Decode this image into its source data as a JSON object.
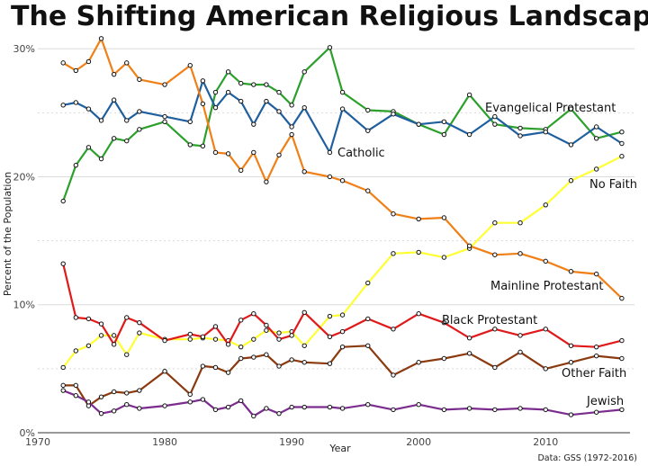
{
  "chart_data": {
    "type": "line",
    "title": "The Shifting American Religious Landscape",
    "xlabel": "Year",
    "ylabel": "Percent of the Population",
    "source": "Data: GSS (1972-2016)",
    "xlim": [
      1970,
      2017
    ],
    "ylim": [
      0,
      31
    ],
    "x_ticks": [
      1970,
      1980,
      1990,
      2000,
      2010
    ],
    "y_ticks": [
      0,
      10,
      20,
      30
    ],
    "y_tick_labels": [
      "0%",
      "10%",
      "20%",
      "30%"
    ],
    "grid": true,
    "legend": "direct labels at line ends",
    "series": [
      {
        "name": "Evangelical Protestant",
        "color": "#2ca02c",
        "x": [
          1972,
          1973,
          1974,
          1975,
          1976,
          1977,
          1978,
          1980,
          1982,
          1983,
          1984,
          1985,
          1986,
          1987,
          1988,
          1989,
          1990,
          1991,
          1993,
          1994,
          1996,
          1998,
          2000,
          2002,
          2004,
          2006,
          2008,
          2010,
          2012,
          2014,
          2016
        ],
        "y": [
          18.1,
          20.9,
          22.3,
          21.4,
          23.0,
          22.8,
          23.7,
          24.3,
          22.5,
          22.4,
          26.6,
          28.2,
          27.3,
          27.2,
          27.2,
          26.6,
          25.6,
          28.2,
          30.1,
          26.6,
          25.2,
          25.1,
          24.1,
          23.3,
          26.4,
          24.1,
          23.8,
          23.7,
          25.3,
          23.0,
          23.5
        ]
      },
      {
        "name": "Catholic",
        "color": "#1f5f9e",
        "x": [
          1972,
          1973,
          1974,
          1975,
          1976,
          1977,
          1978,
          1980,
          1982,
          1983,
          1984,
          1985,
          1986,
          1987,
          1988,
          1989,
          1990,
          1991,
          1993,
          1994,
          1996,
          1998,
          2000,
          2002,
          2004,
          2006,
          2008,
          2010,
          2012,
          2014,
          2016
        ],
        "y": [
          25.6,
          25.8,
          25.3,
          24.4,
          26.0,
          24.4,
          25.1,
          24.7,
          24.3,
          27.5,
          25.4,
          26.6,
          25.9,
          24.1,
          25.9,
          25.1,
          23.9,
          25.4,
          21.9,
          25.3,
          23.6,
          24.9,
          24.1,
          24.3,
          23.3,
          24.7,
          23.2,
          23.5,
          22.5,
          23.9,
          22.6
        ]
      },
      {
        "name": "No Faith",
        "color": "#ffff33",
        "x": [
          1972,
          1973,
          1974,
          1975,
          1976,
          1977,
          1978,
          1980,
          1982,
          1983,
          1984,
          1985,
          1986,
          1987,
          1988,
          1989,
          1990,
          1991,
          1993,
          1994,
          1996,
          1998,
          2000,
          2002,
          2004,
          2006,
          2008,
          2010,
          2012,
          2014,
          2016
        ],
        "y": [
          5.1,
          6.4,
          6.8,
          7.6,
          7.6,
          6.1,
          7.8,
          7.3,
          7.3,
          7.4,
          7.3,
          7.2,
          6.7,
          7.3,
          8.0,
          7.8,
          7.9,
          6.8,
          9.1,
          9.2,
          11.7,
          14.0,
          14.1,
          13.7,
          14.4,
          16.4,
          16.4,
          17.8,
          19.7,
          20.6,
          21.6
        ]
      },
      {
        "name": "Mainline Protestant",
        "color": "#f07f16",
        "x": [
          1972,
          1973,
          1974,
          1975,
          1976,
          1977,
          1978,
          1980,
          1982,
          1983,
          1984,
          1985,
          1986,
          1987,
          1988,
          1989,
          1990,
          1991,
          1993,
          1994,
          1996,
          1998,
          2000,
          2002,
          2004,
          2006,
          2008,
          2010,
          2012,
          2014,
          2016
        ],
        "y": [
          28.9,
          28.3,
          29.0,
          30.8,
          28.0,
          28.9,
          27.6,
          27.2,
          28.7,
          25.7,
          21.9,
          21.8,
          20.5,
          21.9,
          19.6,
          21.7,
          23.3,
          20.4,
          20.0,
          19.7,
          18.9,
          17.1,
          16.7,
          16.8,
          14.6,
          13.9,
          14.0,
          13.4,
          12.6,
          12.4,
          10.5
        ]
      },
      {
        "name": "Black Protestant",
        "color": "#e01a1a",
        "x": [
          1972,
          1973,
          1974,
          1975,
          1976,
          1977,
          1978,
          1980,
          1982,
          1983,
          1984,
          1985,
          1986,
          1987,
          1988,
          1989,
          1990,
          1991,
          1993,
          1994,
          1996,
          1998,
          2000,
          2002,
          2004,
          2006,
          2008,
          2010,
          2012,
          2014,
          2016
        ],
        "y": [
          13.2,
          9.0,
          8.9,
          8.5,
          6.9,
          9.0,
          8.6,
          7.2,
          7.7,
          7.5,
          8.3,
          6.9,
          8.8,
          9.3,
          8.4,
          7.3,
          7.6,
          9.4,
          7.5,
          7.9,
          8.9,
          8.1,
          9.3,
          8.6,
          7.4,
          8.1,
          7.6,
          8.1,
          6.8,
          6.7,
          7.2
        ]
      },
      {
        "name": "Other Faith",
        "color": "#8b3a0f",
        "x": [
          1972,
          1973,
          1974,
          1975,
          1976,
          1977,
          1978,
          1980,
          1982,
          1983,
          1984,
          1985,
          1986,
          1987,
          1988,
          1989,
          1990,
          1991,
          1993,
          1994,
          1996,
          1998,
          2000,
          2002,
          2004,
          2006,
          2008,
          2010,
          2012,
          2014,
          2016
        ],
        "y": [
          3.7,
          3.7,
          2.1,
          2.8,
          3.2,
          3.1,
          3.3,
          4.8,
          3.0,
          5.2,
          5.1,
          4.7,
          5.8,
          5.9,
          6.1,
          5.2,
          5.7,
          5.5,
          5.4,
          6.7,
          6.8,
          4.5,
          5.5,
          5.8,
          6.2,
          5.1,
          6.3,
          5.0,
          5.5,
          6.0,
          5.8
        ]
      },
      {
        "name": "Jewish",
        "color": "#7b2d8e",
        "x": [
          1972,
          1973,
          1974,
          1975,
          1976,
          1977,
          1978,
          1980,
          1982,
          1983,
          1984,
          1985,
          1986,
          1987,
          1988,
          1989,
          1990,
          1991,
          1993,
          1994,
          1996,
          1998,
          2000,
          2002,
          2004,
          2006,
          2008,
          2010,
          2012,
          2014,
          2016
        ],
        "y": [
          3.3,
          2.9,
          2.4,
          1.5,
          1.7,
          2.2,
          1.9,
          2.1,
          2.4,
          2.6,
          1.8,
          2.0,
          2.5,
          1.3,
          1.9,
          1.5,
          2.0,
          2.0,
          2.0,
          1.9,
          2.2,
          1.8,
          2.2,
          1.8,
          1.9,
          1.8,
          1.9,
          1.8,
          1.4,
          1.6,
          1.8
        ]
      }
    ]
  }
}
